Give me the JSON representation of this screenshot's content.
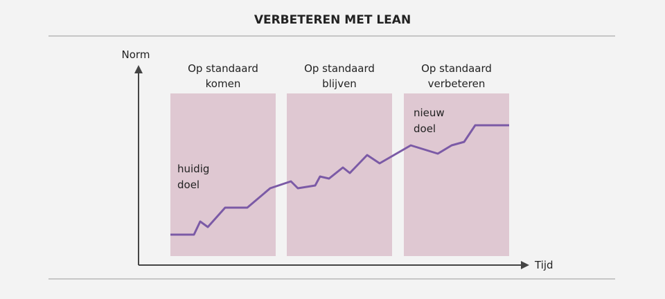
{
  "header": {
    "title": "VERBETEREN MET LEAN"
  },
  "axes": {
    "y_label": "Norm",
    "x_label": "Tijd"
  },
  "phases": [
    {
      "lines": [
        "Op standaard",
        "komen"
      ]
    },
    {
      "lines": [
        "Op standaard",
        "blijven"
      ]
    },
    {
      "lines": [
        "Op standaard",
        "verbeteren"
      ]
    }
  ],
  "annotations": [
    {
      "lines": [
        "huidig",
        "doel"
      ]
    },
    {
      "lines": [
        "nieuw",
        "doel"
      ]
    }
  ]
}
